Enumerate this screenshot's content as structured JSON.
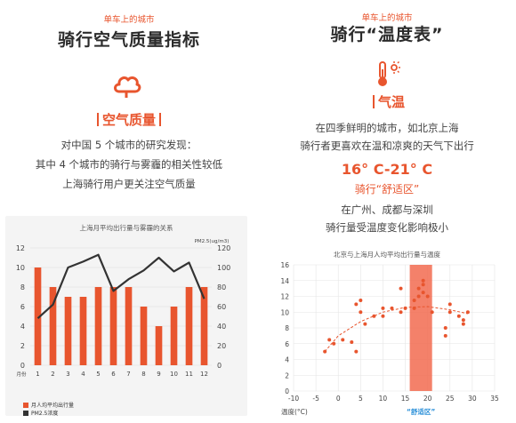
{
  "left": {
    "tag": "单车上的城市",
    "title": "骑行空气质量指标",
    "icon": "cloud-icon",
    "section": "空气质量",
    "lines": [
      "对中国 5 个城市的研究发现：",
      "其中 4 个城市的骑行与雾霾的相关性较低",
      "上海骑行用户更关注空气质量"
    ]
  },
  "right": {
    "tag": "单车上的城市",
    "title": "骑行“温度表”",
    "icon": "thermometer-sun-icon",
    "section": "气温",
    "lines1": [
      "在四季鲜明的城市，如北京上海",
      "骑行者更喜欢在温和凉爽的天气下出行"
    ],
    "range": "16° C-21° C",
    "subtitle": "骑行“舒适区”",
    "lines2": [
      "在广州、成都与深圳",
      "骑行量受温度变化影响极小"
    ]
  },
  "colors": {
    "accent": "#e8552e",
    "line": "#333333",
    "grid": "#e5e5e5",
    "band": "#f26b50"
  },
  "chart_data": [
    {
      "type": "bar",
      "title": "上海月平均出行量与雾霾的关系",
      "xlabel": "月份",
      "ylabel_right": "PM2.5(ug/m3)",
      "categories": [
        "1",
        "2",
        "3",
        "4",
        "5",
        "6",
        "7",
        "8",
        "9",
        "10",
        "11",
        "12"
      ],
      "ylim": [
        0,
        12
      ],
      "ylim_right": [
        0,
        120
      ],
      "yticks": [
        "0",
        "2",
        "4",
        "6",
        "8",
        "10",
        "12"
      ],
      "yticks_right": [
        "0",
        "20",
        "40",
        "60",
        "80",
        "100",
        "120"
      ],
      "series": [
        {
          "name": "月人均平均出行量",
          "type": "bar",
          "values": [
            10,
            8,
            7,
            7,
            8,
            8,
            8,
            6,
            4,
            6,
            8,
            8
          ]
        },
        {
          "name": "PM2.5浓度",
          "type": "line",
          "axis": "right",
          "values": [
            48,
            62,
            100,
            106,
            113,
            76,
            88,
            97,
            110,
            96,
            105,
            68
          ]
        }
      ]
    },
    {
      "type": "scatter",
      "title": "北京与上海月人均平均出行量与温度",
      "xlabel": "温度(°C)",
      "xlim": [
        -10,
        35
      ],
      "ylim": [
        0,
        16
      ],
      "xticks": [
        "-10",
        "-5",
        "0",
        "5",
        "10",
        "15",
        "20",
        "25",
        "30",
        "35"
      ],
      "yticks": [
        "0",
        "2",
        "4",
        "6",
        "8",
        "10",
        "12",
        "14",
        "16"
      ],
      "band": {
        "from": 16,
        "to": 21,
        "label": "“舒适区”"
      },
      "points": [
        [
          -3,
          5.0
        ],
        [
          -2,
          6.5
        ],
        [
          -1,
          6.0
        ],
        [
          1,
          6.5
        ],
        [
          3,
          6.2
        ],
        [
          4,
          5.0
        ],
        [
          4,
          11.0
        ],
        [
          5,
          10.0
        ],
        [
          5,
          11.5
        ],
        [
          6,
          8.5
        ],
        [
          8,
          9.5
        ],
        [
          10,
          9.5
        ],
        [
          10,
          10.5
        ],
        [
          12,
          10.5
        ],
        [
          14,
          10.0
        ],
        [
          14,
          13.0
        ],
        [
          15,
          10.5
        ],
        [
          17,
          10.5
        ],
        [
          17,
          11.5
        ],
        [
          18,
          12.0
        ],
        [
          18,
          13.0
        ],
        [
          19,
          13.5
        ],
        [
          19,
          14.0
        ],
        [
          19,
          12.5
        ],
        [
          20,
          12.0
        ],
        [
          21,
          10.0
        ],
        [
          24,
          8.0
        ],
        [
          24,
          7.0
        ],
        [
          25,
          11.0
        ],
        [
          25,
          10.0
        ],
        [
          27,
          9.5
        ],
        [
          28,
          8.5
        ],
        [
          28,
          9.0
        ],
        [
          29,
          10.0
        ]
      ],
      "trend": [
        [
          -3,
          5.0
        ],
        [
          0,
          7.0
        ],
        [
          5,
          8.8
        ],
        [
          10,
          10.0
        ],
        [
          15,
          10.6
        ],
        [
          20,
          10.7
        ],
        [
          25,
          10.3
        ],
        [
          29,
          9.8
        ]
      ]
    }
  ]
}
